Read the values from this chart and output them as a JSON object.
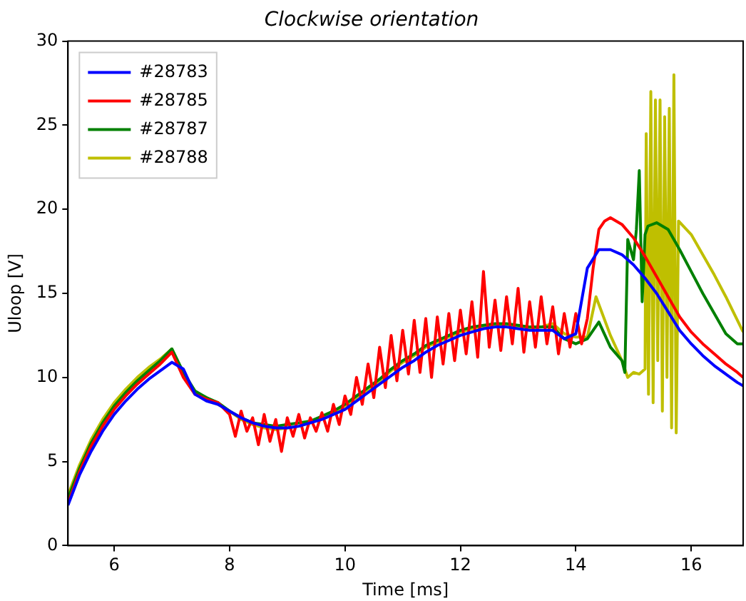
{
  "chart_data": {
    "type": "line",
    "title": "Clockwise orientation",
    "xlabel": "Time [ms]",
    "ylabel": "Uloop [V]",
    "xlim": [
      5.2,
      16.9
    ],
    "xticks": [
      6,
      8,
      10,
      12,
      14,
      16
    ],
    "ylim": [
      0,
      30
    ],
    "yticks": [
      0,
      5,
      10,
      15,
      20,
      25,
      30
    ],
    "grid": false,
    "legend": "top left",
    "marker": "none",
    "line_style": "solid",
    "series": [
      {
        "name": "#28783",
        "color": "#0000ff",
        "x": [
          5.2,
          5.4,
          5.6,
          5.8,
          6.0,
          6.2,
          6.4,
          6.6,
          6.8,
          7.0,
          7.2,
          7.4,
          7.6,
          7.8,
          8.0,
          8.2,
          8.4,
          8.6,
          8.8,
          9.0,
          9.2,
          9.4,
          9.6,
          9.8,
          10.0,
          10.2,
          10.4,
          10.6,
          10.8,
          11.0,
          11.2,
          11.4,
          11.6,
          11.8,
          12.0,
          12.2,
          12.4,
          12.6,
          12.8,
          13.0,
          13.2,
          13.4,
          13.6,
          13.8,
          14.0,
          14.2,
          14.4,
          14.6,
          14.8,
          15.0,
          15.2,
          15.4,
          15.6,
          15.8,
          16.0,
          16.2,
          16.4,
          16.6,
          16.8,
          16.9
        ],
        "values": [
          2.4,
          4.2,
          5.6,
          6.8,
          7.8,
          8.6,
          9.3,
          9.9,
          10.4,
          10.9,
          10.5,
          9.0,
          8.6,
          8.4,
          8.0,
          7.6,
          7.3,
          7.1,
          7.0,
          7.0,
          7.1,
          7.3,
          7.5,
          7.8,
          8.1,
          8.6,
          9.1,
          9.6,
          10.1,
          10.6,
          11.0,
          11.5,
          11.9,
          12.2,
          12.5,
          12.7,
          12.9,
          13.0,
          13.0,
          12.9,
          12.8,
          12.8,
          12.8,
          12.3,
          12.6,
          16.5,
          17.6,
          17.6,
          17.3,
          16.7,
          15.9,
          15.0,
          13.9,
          12.8,
          12.0,
          11.3,
          10.7,
          10.2,
          9.7,
          9.5
        ]
      },
      {
        "name": "#28785",
        "color": "#ff0000",
        "x": [
          5.2,
          5.4,
          5.6,
          5.8,
          6.0,
          6.2,
          6.4,
          6.6,
          6.8,
          7.0,
          7.2,
          7.4,
          7.6,
          7.8,
          8.0,
          8.1,
          8.2,
          8.3,
          8.4,
          8.5,
          8.6,
          8.7,
          8.8,
          8.9,
          9.0,
          9.1,
          9.2,
          9.3,
          9.4,
          9.5,
          9.6,
          9.7,
          9.8,
          9.9,
          10.0,
          10.1,
          10.2,
          10.3,
          10.4,
          10.5,
          10.6,
          10.7,
          10.8,
          10.9,
          11.0,
          11.1,
          11.2,
          11.3,
          11.4,
          11.5,
          11.6,
          11.7,
          11.8,
          11.9,
          12.0,
          12.1,
          12.2,
          12.3,
          12.4,
          12.5,
          12.6,
          12.7,
          12.8,
          12.9,
          13.0,
          13.1,
          13.2,
          13.3,
          13.4,
          13.5,
          13.6,
          13.7,
          13.8,
          13.9,
          14.0,
          14.1,
          14.2,
          14.3,
          14.4,
          14.5,
          14.6,
          14.8,
          15.0,
          15.2,
          15.4,
          15.6,
          15.8,
          16.0,
          16.2,
          16.4,
          16.6,
          16.8,
          16.9
        ],
        "values": [
          2.5,
          4.4,
          5.9,
          7.1,
          8.1,
          8.9,
          9.6,
          10.2,
          10.8,
          11.5,
          10.0,
          9.0,
          8.7,
          8.5,
          7.8,
          6.5,
          8.0,
          6.8,
          7.6,
          6.0,
          7.8,
          6.2,
          7.5,
          5.6,
          7.6,
          6.5,
          7.8,
          6.4,
          7.6,
          6.8,
          7.9,
          6.8,
          8.4,
          7.2,
          8.9,
          7.8,
          10.0,
          8.4,
          10.8,
          8.8,
          11.8,
          9.4,
          12.5,
          9.8,
          12.8,
          10.2,
          13.4,
          10.3,
          13.5,
          10.0,
          13.6,
          10.8,
          13.8,
          11.0,
          14.0,
          11.4,
          14.5,
          11.2,
          16.3,
          11.8,
          14.6,
          11.6,
          14.8,
          12.0,
          15.3,
          11.5,
          14.5,
          11.8,
          14.8,
          12.0,
          14.2,
          11.4,
          13.8,
          11.8,
          13.8,
          12.0,
          13.5,
          16.5,
          18.8,
          19.3,
          19.5,
          19.1,
          18.3,
          17.2,
          16.0,
          14.8,
          13.6,
          12.7,
          12.0,
          11.4,
          10.8,
          10.3,
          10.0
        ]
      },
      {
        "name": "#28787",
        "color": "#008000",
        "x": [
          5.2,
          5.4,
          5.6,
          5.8,
          6.0,
          6.2,
          6.4,
          6.6,
          6.8,
          7.0,
          7.2,
          7.4,
          7.6,
          7.8,
          8.0,
          8.2,
          8.4,
          8.6,
          8.8,
          9.0,
          9.2,
          9.4,
          9.6,
          9.8,
          10.0,
          10.2,
          10.4,
          10.6,
          10.8,
          11.0,
          11.2,
          11.4,
          11.6,
          11.8,
          12.0,
          12.2,
          12.4,
          12.6,
          12.8,
          13.0,
          13.2,
          13.4,
          13.6,
          13.8,
          14.0,
          14.2,
          14.4,
          14.6,
          14.8,
          14.85,
          14.9,
          15.0,
          15.05,
          15.1,
          15.15,
          15.2,
          15.25,
          15.4,
          15.6,
          15.8,
          16.0,
          16.2,
          16.4,
          16.6,
          16.8,
          16.9
        ],
        "values": [
          2.8,
          4.6,
          6.1,
          7.3,
          8.3,
          9.1,
          9.8,
          10.4,
          11.0,
          11.7,
          10.3,
          9.2,
          8.8,
          8.5,
          8.0,
          7.6,
          7.3,
          7.2,
          7.1,
          7.2,
          7.3,
          7.4,
          7.7,
          8.0,
          8.4,
          8.9,
          9.4,
          9.9,
          10.5,
          11.0,
          11.4,
          11.9,
          12.2,
          12.5,
          12.8,
          13.0,
          13.1,
          13.2,
          13.2,
          13.1,
          13.0,
          13.0,
          13.0,
          12.3,
          12.0,
          12.3,
          13.3,
          11.8,
          11.0,
          10.3,
          18.2,
          17.0,
          18.8,
          22.3,
          14.5,
          18.5,
          19.0,
          19.2,
          18.8,
          17.6,
          16.3,
          15.0,
          13.8,
          12.6,
          12.0,
          12.0
        ]
      },
      {
        "name": "#28788",
        "color": "#bfbf00",
        "x": [
          5.2,
          5.4,
          5.6,
          5.8,
          6.0,
          6.2,
          6.4,
          6.6,
          6.8,
          7.0,
          7.2,
          7.4,
          7.6,
          7.8,
          8.0,
          8.2,
          8.4,
          8.6,
          8.8,
          9.0,
          9.2,
          9.4,
          9.6,
          9.8,
          10.0,
          10.2,
          10.4,
          10.6,
          10.8,
          11.0,
          11.2,
          11.4,
          11.6,
          11.8,
          12.0,
          12.2,
          12.4,
          12.6,
          12.8,
          13.0,
          13.2,
          13.4,
          13.6,
          13.8,
          14.0,
          14.2,
          14.35,
          14.6,
          14.8,
          14.9,
          15.0,
          15.1,
          15.2,
          15.22,
          15.26,
          15.3,
          15.34,
          15.38,
          15.42,
          15.46,
          15.5,
          15.54,
          15.58,
          15.62,
          15.66,
          15.7,
          15.74,
          15.78,
          16.0,
          16.2,
          16.4,
          16.6,
          16.8,
          16.9
        ],
        "values": [
          3.0,
          4.8,
          6.3,
          7.5,
          8.5,
          9.3,
          10.0,
          10.6,
          11.1,
          11.7,
          10.2,
          9.1,
          8.8,
          8.4,
          8.0,
          7.5,
          7.2,
          7.0,
          6.9,
          7.0,
          7.1,
          7.3,
          7.6,
          7.9,
          8.3,
          8.8,
          9.3,
          9.8,
          10.4,
          10.9,
          11.3,
          11.8,
          12.1,
          12.4,
          12.7,
          12.9,
          13.0,
          13.1,
          13.1,
          13.0,
          12.9,
          13.0,
          13.2,
          12.6,
          12.4,
          12.4,
          14.8,
          12.5,
          11.0,
          10.0,
          10.3,
          10.2,
          10.5,
          24.5,
          9.0,
          27.0,
          8.5,
          26.5,
          11.0,
          26.5,
          8.0,
          25.5,
          10.0,
          26.0,
          7.0,
          28.0,
          6.7,
          19.3,
          18.5,
          17.3,
          16.1,
          14.8,
          13.4,
          12.7
        ]
      }
    ]
  }
}
